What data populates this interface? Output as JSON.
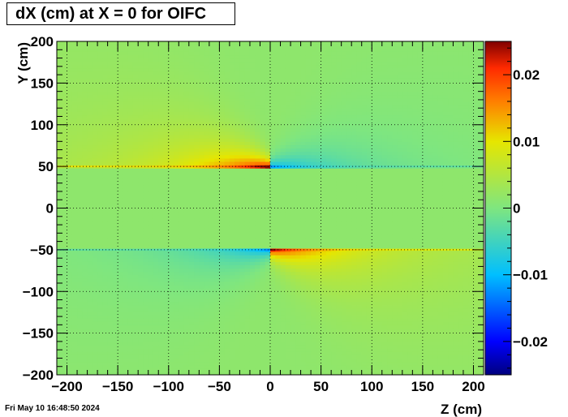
{
  "chart_data": {
    "type": "heatmap",
    "title": "dX (cm) at X = 0 for OIFC",
    "xlabel": "Z (cm)",
    "ylabel": "Y (cm)",
    "xlim": [
      -210,
      210
    ],
    "ylim": [
      -200,
      200
    ],
    "zlim": [
      -0.025,
      0.025
    ],
    "x_ticks": [
      -200,
      -150,
      -100,
      -50,
      0,
      50,
      100,
      150,
      200
    ],
    "x_tick_labels": [
      "−200",
      "−150",
      "−100",
      "−50",
      "0",
      "50",
      "100",
      "150",
      "200"
    ],
    "y_ticks": [
      -200,
      -150,
      -100,
      -50,
      0,
      50,
      100,
      150,
      200
    ],
    "y_tick_labels": [
      "−200",
      "−150",
      "−100",
      "−50",
      "0",
      "50",
      "100",
      "150",
      "200"
    ],
    "z_ticks": [
      -0.02,
      -0.01,
      0,
      0.01,
      0.02
    ],
    "z_tick_labels": [
      "−0.02",
      "−0.01",
      "0",
      "0.01",
      "0.02"
    ],
    "grid": true,
    "colorbar": "right",
    "colormap": [
      "#00007f",
      "#0000ff",
      "#00bfff",
      "#7fe67f",
      "#e6e600",
      "#ff7f00",
      "#ff2a00",
      "#800000"
    ],
    "features": [
      {
        "region": "Y 50-200, Z -200 to 0",
        "peak": 0.025,
        "peak_at": [
          0,
          50
        ]
      },
      {
        "region": "Y 50-200, Z 0 to 200",
        "peak": -0.011,
        "peak_at": [
          0,
          50
        ]
      },
      {
        "region": "Y -200 to -50, Z -200 to 0",
        "peak": -0.011,
        "peak_at": [
          0,
          -50
        ]
      },
      {
        "region": "Y -200 to -50, Z 0 to 200",
        "peak": 0.022,
        "peak_at": [
          0,
          -50
        ]
      }
    ]
  },
  "footer": {
    "timestamp": "Fri May 10 16:48:50 2024"
  }
}
